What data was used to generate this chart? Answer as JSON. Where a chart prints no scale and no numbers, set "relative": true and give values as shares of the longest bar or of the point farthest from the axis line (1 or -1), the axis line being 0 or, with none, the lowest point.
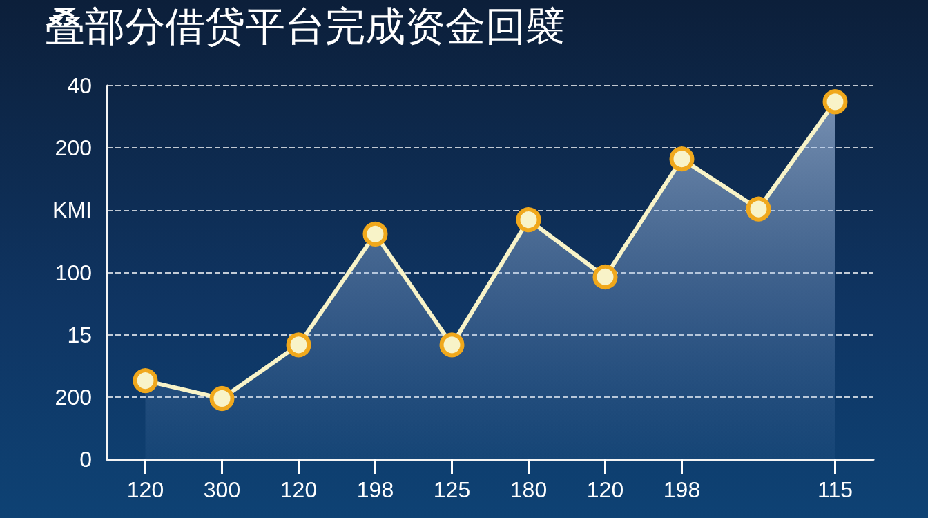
{
  "chart_data": {
    "type": "area",
    "title": "叠部分借贷平台完成资金回襞",
    "categories": [
      "120",
      "300",
      "120",
      "198",
      "125",
      "180",
      "120",
      "198",
      null,
      "115"
    ],
    "series": [
      {
        "color": "#f8f3c8",
        "values": [
          0.22,
          0.17,
          0.32,
          0.63,
          0.32,
          0.67,
          0.51,
          0.84,
          0.7,
          1
        ]
      }
    ],
    "relative": true,
    "annotations": [
      "40",
      "200",
      "KMI",
      "100",
      "15",
      "200",
      "0"
    ],
    "grid": "y",
    "marker": "circle",
    "line_style": "solid"
  }
}
